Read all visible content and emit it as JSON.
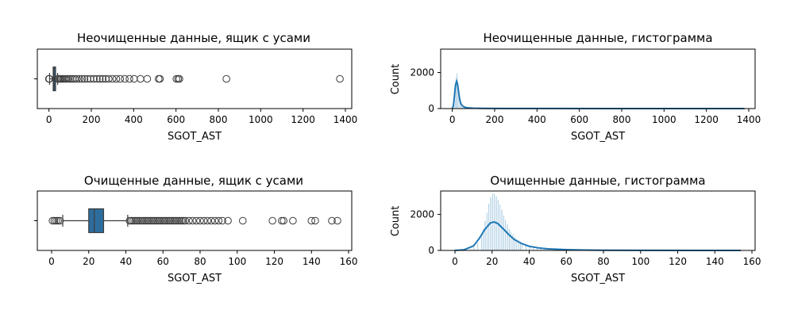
{
  "panels": [
    {
      "id": "raw-box",
      "type": "box",
      "title": "Неочищенные данные, ящик с усами",
      "xlabel": "SGOT_AST",
      "ylabel": "",
      "xlim": [
        -55,
        1430
      ],
      "xticks": [
        0,
        200,
        400,
        600,
        800,
        1000,
        1200,
        1400
      ],
      "box": {
        "q1": 20,
        "median": 24,
        "q3": 28,
        "whisker_low": 3,
        "whisker_high": 41
      },
      "outliers": [
        0,
        1,
        2,
        42,
        46,
        52,
        58,
        64,
        70,
        78,
        86,
        94,
        102,
        112,
        122,
        132,
        144,
        156,
        168,
        182,
        196,
        212,
        226,
        240,
        254,
        268,
        282,
        300,
        318,
        336,
        358,
        380,
        402,
        432,
        464,
        518,
        524,
        602,
        610,
        616,
        838,
        1374
      ]
    },
    {
      "id": "raw-hist",
      "type": "hist",
      "title": "Неочищенные данные, гистограмма",
      "xlabel": "SGOT_AST",
      "ylabel": "Count",
      "xlim": [
        -55,
        1430
      ],
      "ylim": [
        0,
        3300
      ],
      "xticks": [
        0,
        200,
        400,
        600,
        800,
        1000,
        1200,
        1400
      ],
      "yticks": [
        0,
        2000
      ],
      "bin_width": 2,
      "hist": [
        [
          8,
          60
        ],
        [
          10,
          200
        ],
        [
          12,
          500
        ],
        [
          14,
          950
        ],
        [
          16,
          1450
        ],
        [
          18,
          1800
        ],
        [
          20,
          2000
        ],
        [
          22,
          1950
        ],
        [
          24,
          1700
        ],
        [
          26,
          1350
        ],
        [
          28,
          1000
        ],
        [
          30,
          740
        ],
        [
          32,
          540
        ],
        [
          34,
          390
        ],
        [
          36,
          280
        ],
        [
          38,
          200
        ],
        [
          40,
          145
        ],
        [
          42,
          110
        ],
        [
          44,
          85
        ],
        [
          46,
          68
        ],
        [
          48,
          55
        ],
        [
          50,
          45
        ],
        [
          54,
          35
        ],
        [
          58,
          28
        ],
        [
          64,
          20
        ],
        [
          72,
          14
        ],
        [
          82,
          10
        ],
        [
          96,
          6
        ]
      ],
      "kde": [
        [
          0,
          0
        ],
        [
          5,
          150
        ],
        [
          10,
          700
        ],
        [
          15,
          1300
        ],
        [
          20,
          1520
        ],
        [
          25,
          1350
        ],
        [
          30,
          900
        ],
        [
          35,
          500
        ],
        [
          40,
          300
        ],
        [
          45,
          180
        ],
        [
          55,
          90
        ],
        [
          70,
          45
        ],
        [
          100,
          20
        ],
        [
          150,
          10
        ],
        [
          250,
          5
        ],
        [
          500,
          3
        ],
        [
          800,
          2
        ],
        [
          1380,
          0
        ]
      ],
      "kde_color": "#1f77b4"
    },
    {
      "id": "clean-box",
      "type": "box",
      "title": "Очищенные данные, ящик с усами",
      "xlabel": "SGOT_AST",
      "ylabel": "",
      "xlim": [
        -7.7,
        161.7
      ],
      "xticks": [
        0,
        20,
        40,
        60,
        80,
        100,
        120,
        140,
        160
      ],
      "box": {
        "q1": 20,
        "median": 23,
        "q3": 28,
        "whisker_low": 6,
        "whisker_high": 41
      },
      "outliers": [
        0.5,
        1.5,
        2.5,
        3.5,
        4.5,
        42,
        43,
        44,
        45,
        46,
        47,
        48,
        49,
        50,
        51,
        52,
        53,
        54,
        55,
        56,
        57,
        58,
        59,
        60,
        61,
        62,
        63,
        64,
        65,
        66,
        67,
        68,
        69,
        70,
        71,
        72,
        74,
        76,
        78,
        80,
        82,
        84,
        86,
        88,
        90,
        92,
        95,
        103,
        119,
        124,
        125,
        130,
        140,
        142,
        151,
        154
      ]
    },
    {
      "id": "clean-hist",
      "type": "hist",
      "title": "Очищенные данные, гистограмма",
      "xlabel": "SGOT_AST",
      "ylabel": "Count",
      "xlim": [
        -7.7,
        161.7
      ],
      "ylim": [
        0,
        3300
      ],
      "xticks": [
        0,
        20,
        40,
        60,
        80,
        100,
        120,
        140,
        160
      ],
      "yticks": [
        0,
        2000
      ],
      "bin_width": 0.5,
      "hist": [
        [
          6,
          20
        ],
        [
          8,
          80
        ],
        [
          10,
          200
        ],
        [
          12,
          420
        ],
        [
          14,
          850
        ],
        [
          15,
          1200
        ],
        [
          16,
          1650
        ],
        [
          17,
          2100
        ],
        [
          18,
          2600
        ],
        [
          19,
          2950
        ],
        [
          20,
          3150
        ],
        [
          21,
          3150
        ],
        [
          22,
          3000
        ],
        [
          23,
          2800
        ],
        [
          24,
          2550
        ],
        [
          25,
          2250
        ],
        [
          26,
          1950
        ],
        [
          27,
          1700
        ],
        [
          28,
          1450
        ],
        [
          29,
          1200
        ],
        [
          30,
          1050
        ],
        [
          31,
          900
        ],
        [
          32,
          750
        ],
        [
          33,
          650
        ],
        [
          34,
          560
        ],
        [
          35,
          480
        ],
        [
          36,
          410
        ],
        [
          38,
          320
        ],
        [
          40,
          240
        ],
        [
          42,
          180
        ],
        [
          44,
          140
        ],
        [
          46,
          110
        ],
        [
          48,
          90
        ],
        [
          50,
          70
        ],
        [
          54,
          50
        ],
        [
          58,
          38
        ],
        [
          62,
          28
        ],
        [
          68,
          20
        ],
        [
          76,
          12
        ],
        [
          84,
          8
        ],
        [
          94,
          5
        ],
        [
          110,
          3
        ]
      ],
      "kde": [
        [
          0,
          0
        ],
        [
          5,
          40
        ],
        [
          10,
          250
        ],
        [
          13,
          650
        ],
        [
          16,
          1150
        ],
        [
          19,
          1520
        ],
        [
          21,
          1580
        ],
        [
          23,
          1500
        ],
        [
          26,
          1200
        ],
        [
          29,
          880
        ],
        [
          32,
          600
        ],
        [
          36,
          380
        ],
        [
          40,
          230
        ],
        [
          45,
          140
        ],
        [
          50,
          90
        ],
        [
          60,
          45
        ],
        [
          70,
          22
        ],
        [
          80,
          12
        ],
        [
          100,
          5
        ],
        [
          130,
          2
        ],
        [
          154,
          0
        ]
      ],
      "kde_color": "#1f77b4"
    }
  ]
}
